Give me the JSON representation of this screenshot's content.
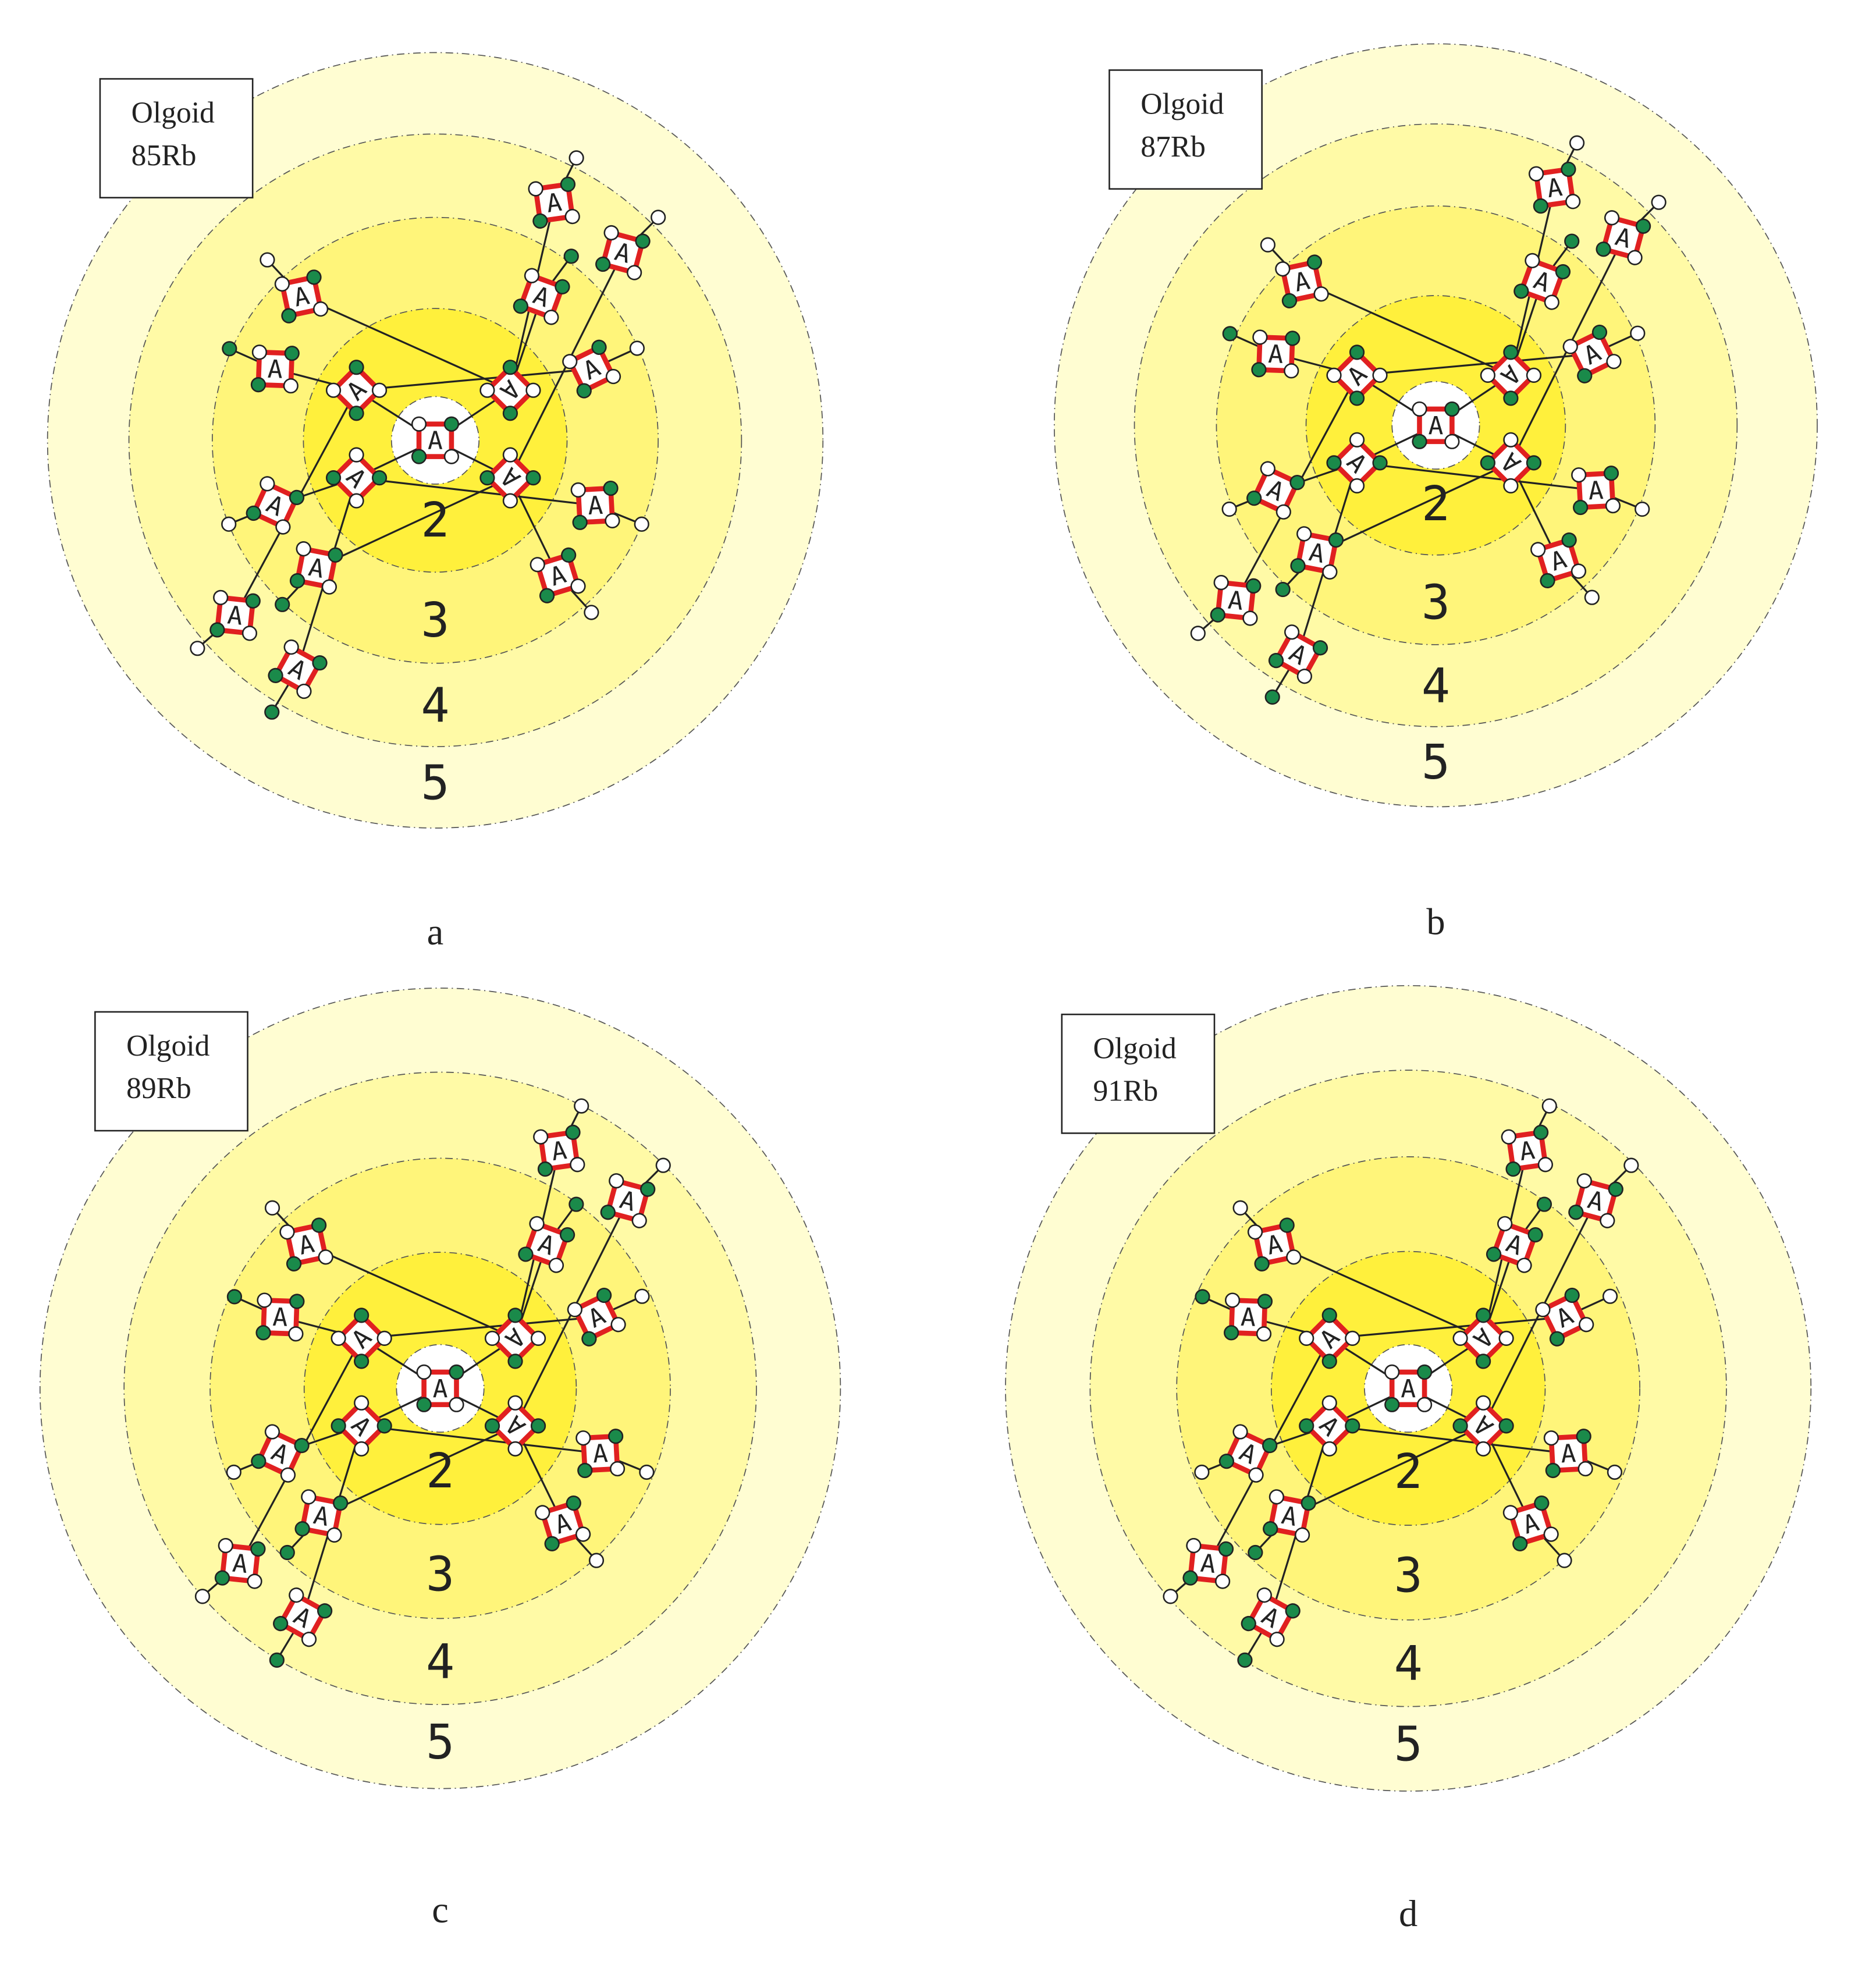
{
  "panels": [
    {
      "box": [
        "Olgoid",
        "85Rb"
      ],
      "unit": "A",
      "rings": [
        "2",
        "3",
        "4",
        "5"
      ],
      "caption": "a"
    },
    {
      "box": [
        "Olgoid",
        "87Rb"
      ],
      "unit": "A",
      "rings": [
        "2",
        "3",
        "4",
        "5"
      ],
      "caption": "b"
    },
    {
      "box": [
        "Olgoid",
        "89Rb"
      ],
      "unit": "A",
      "rings": [
        "2",
        "3",
        "4",
        "5"
      ],
      "caption": "c"
    },
    {
      "box": [
        "Olgoid",
        "91Rb"
      ],
      "unit": "A",
      "rings": [
        "2",
        "3",
        "4",
        "5"
      ],
      "caption": "d"
    }
  ]
}
